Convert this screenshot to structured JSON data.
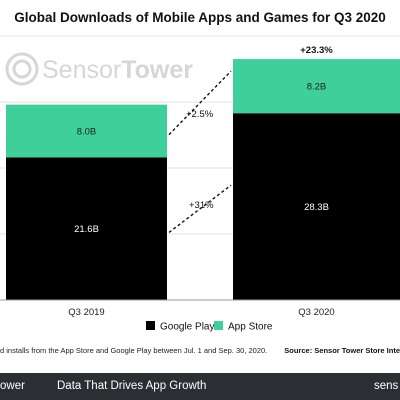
{
  "chart_data": {
    "type": "bar",
    "stacked": true,
    "title": "Global Downloads of Mobile Apps and Games for Q3 2020",
    "categories": [
      "Q3 2019",
      "Q3 2020"
    ],
    "series": [
      {
        "name": "Google Play",
        "color": "#000000",
        "values": [
          21.6,
          28.3
        ],
        "labels": [
          "21.6B",
          "28.3B"
        ]
      },
      {
        "name": "App Store",
        "color": "#3ecf9a",
        "values": [
          8.0,
          8.2
        ],
        "labels": [
          "8.0B",
          "8.2B"
        ]
      }
    ],
    "ylim": [
      0,
      40
    ],
    "grid": true,
    "legend_position": "bottom",
    "annotations": {
      "app_store_growth": "+2.5%",
      "google_play_growth": "+31%",
      "total_growth": "+23.3%"
    },
    "footnote": "d installs from the App Store and Google Play between Jul. 1 and Sep. 30, 2020.",
    "source": "Source: Sensor Tower Store Inte"
  },
  "watermark": {
    "brand_light": "Sensor",
    "brand_bold": "Tower"
  },
  "footer": {
    "left_fragment": "ower",
    "tagline": "Data That Drives App Growth",
    "right_fragment": "sens"
  },
  "colors": {
    "google_play": "#000000",
    "app_store": "#3ecf9a",
    "footer_bg": "#2b2f33"
  }
}
